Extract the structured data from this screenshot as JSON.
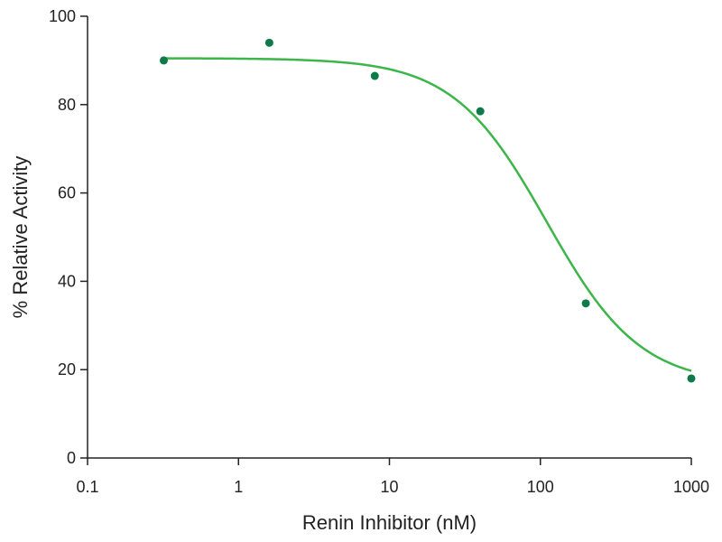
{
  "chart_data": {
    "type": "scatter",
    "title": "",
    "xlabel": "Renin Inhibitor (nM)",
    "ylabel": "% Relative Activity",
    "x_scale": "log",
    "xlim": [
      0.1,
      1000
    ],
    "ylim": [
      0,
      100
    ],
    "x_ticks": [
      0.1,
      1,
      10,
      100,
      1000
    ],
    "x_tick_labels": [
      "0.1",
      "1",
      "10",
      "100",
      "1000"
    ],
    "y_ticks": [
      0,
      20,
      40,
      60,
      80,
      100
    ],
    "y_tick_labels": [
      "0",
      "20",
      "40",
      "60",
      "80",
      "100"
    ],
    "grid": false,
    "legend": "none",
    "points": [
      {
        "x": 0.32,
        "y": 90
      },
      {
        "x": 1.6,
        "y": 94
      },
      {
        "x": 8,
        "y": 86.5
      },
      {
        "x": 40,
        "y": 78.5
      },
      {
        "x": 200,
        "y": 35
      },
      {
        "x": 1000,
        "y": 18
      }
    ],
    "fit_curve": {
      "type": "four-parameter logistic",
      "top": 90.5,
      "bottom": 16.5,
      "ic50": 110,
      "hill_slope": 1.4
    },
    "colors": {
      "points": "#0e7a4a",
      "curve": "#3cb54a",
      "axis": "#222222"
    }
  }
}
